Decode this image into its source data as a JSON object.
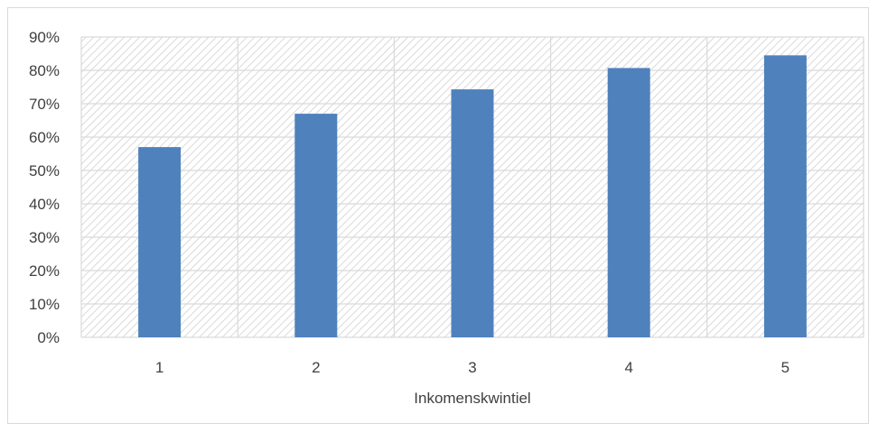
{
  "chart_data": {
    "type": "bar",
    "categories": [
      "1",
      "2",
      "3",
      "4",
      "5"
    ],
    "values": [
      57,
      67,
      74.3,
      80.7,
      84.5
    ],
    "title": "",
    "xlabel": "Inkomenskwintiel",
    "ylabel": "",
    "ylim": [
      0,
      90
    ],
    "yticks": [
      "0%",
      "10%",
      "20%",
      "30%",
      "40%",
      "50%",
      "60%",
      "70%",
      "80%",
      "90%"
    ],
    "grid": true,
    "legend": "none",
    "colors": {
      "bar": "#4f81bd",
      "grid": "#d9d9d9",
      "plot_pattern": "#d0d0d0"
    }
  }
}
